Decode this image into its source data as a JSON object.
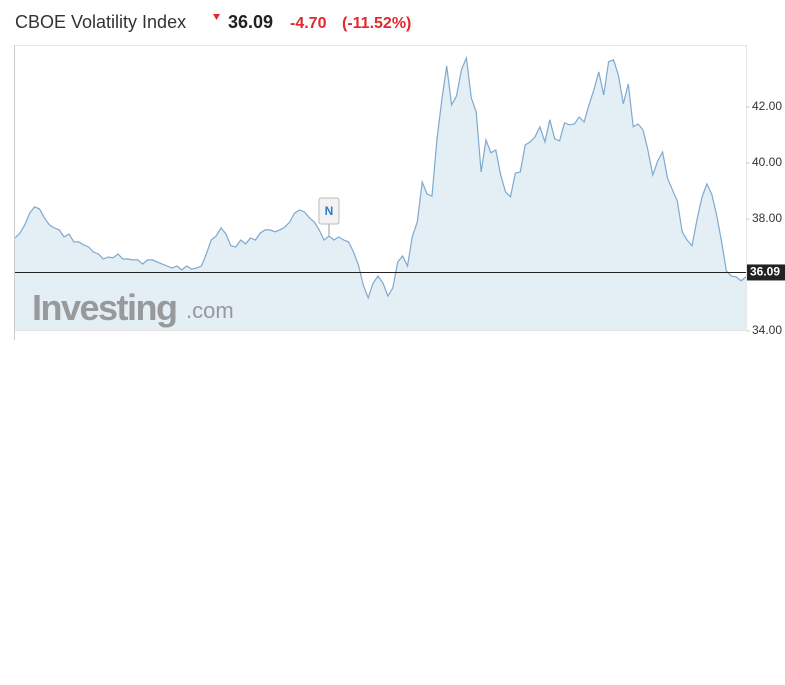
{
  "header": {
    "title": "CBOE Volatility Index",
    "change": "-4.70",
    "change_pct": "(-11.52%)"
  },
  "chart_data": {
    "type": "area",
    "color": "#7fa9cf",
    "fill": "#e3eef5",
    "values": [
      37.32,
      37.5,
      37.79,
      38.21,
      38.43,
      38.36,
      38.04,
      37.79,
      37.68,
      37.61,
      37.36,
      37.46,
      37.18,
      37.18,
      37.07,
      37.0,
      36.82,
      36.75,
      36.57,
      36.64,
      36.61,
      36.75,
      36.57,
      36.57,
      36.54,
      36.54,
      36.39,
      36.54,
      36.54,
      36.46,
      36.39,
      36.32,
      36.25,
      36.32,
      36.18,
      36.32,
      36.21,
      36.25,
      36.32,
      36.75,
      37.25,
      37.39,
      37.68,
      37.46,
      37.04,
      37.0,
      37.25,
      37.11,
      37.32,
      37.25,
      37.5,
      37.61,
      37.61,
      37.54,
      37.61,
      37.71,
      37.89,
      38.21,
      38.32,
      38.25,
      38.04,
      37.89,
      37.61,
      37.25,
      37.39,
      37.25,
      37.36,
      37.25,
      37.18,
      36.82,
      36.36,
      35.64,
      35.18,
      35.71,
      35.96,
      35.71,
      35.25,
      35.54,
      36.46,
      36.68,
      36.32,
      37.39,
      37.89,
      39.32,
      38.89,
      38.82,
      40.82,
      42.25,
      43.46,
      42.07,
      42.39,
      43.32,
      43.75,
      42.32,
      41.82,
      39.68,
      40.82,
      40.36,
      40.46,
      39.57,
      38.96,
      38.79,
      39.64,
      39.68,
      40.64,
      40.75,
      40.93,
      41.29,
      40.75,
      41.54,
      40.86,
      40.79,
      41.43,
      41.36,
      41.39,
      41.64,
      41.46,
      42.07,
      42.61,
      43.25,
      42.43,
      43.61,
      43.68,
      43.14,
      42.11,
      42.82,
      41.29,
      41.39,
      41.18,
      40.46,
      39.57,
      40.07,
      40.39,
      39.46,
      39.04,
      38.64,
      37.54,
      37.25,
      37.04,
      37.96,
      38.75,
      39.25,
      38.89,
      38.14,
      37.21,
      36.14,
      35.96,
      35.93,
      35.79,
      35.93
    ],
    "ylim": [
      34,
      44.21
    ],
    "yticks": [
      {
        "value": 34,
        "label": "34.00"
      },
      {
        "value": 38,
        "label": "38.00"
      },
      {
        "value": 40,
        "label": "40.00"
      },
      {
        "value": 42,
        "label": "42.00"
      }
    ],
    "last_price": 36.09,
    "annotations": [
      "N"
    ],
    "grid": false
  },
  "watermark": {
    "brand": "Investing",
    "suffix": ".com"
  }
}
